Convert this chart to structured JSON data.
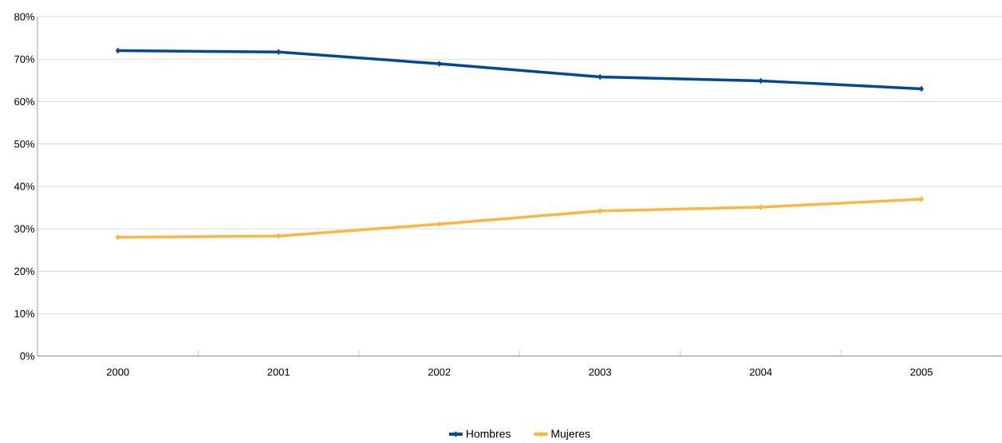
{
  "chart_data": {
    "type": "line",
    "categories": [
      "2000",
      "2001",
      "2002",
      "2003",
      "2004",
      "2005"
    ],
    "series": [
      {
        "name": "Hombres",
        "color": "#004a8f",
        "values": [
          72,
          71.7,
          68.9,
          65.8,
          64.9,
          63
        ]
      },
      {
        "name": "Mujeres",
        "color": "#fbb741",
        "values": [
          28,
          28.3,
          31.1,
          34.2,
          35.1,
          37
        ]
      }
    ],
    "ylim": [
      0,
      80
    ],
    "yticks": [
      {
        "value": 0,
        "label": "0%"
      },
      {
        "value": 10,
        "label": "10%"
      },
      {
        "value": 20,
        "label": "20%"
      },
      {
        "value": 30,
        "label": "30%"
      },
      {
        "value": 40,
        "label": "40%"
      },
      {
        "value": 50,
        "label": "50%"
      },
      {
        "value": 60,
        "label": "60%"
      },
      {
        "value": 70,
        "label": "70%"
      },
      {
        "value": 80,
        "label": "80%"
      }
    ],
    "grid": "y",
    "legend": "bottom",
    "marker": "diamond",
    "line_style": "solid"
  }
}
